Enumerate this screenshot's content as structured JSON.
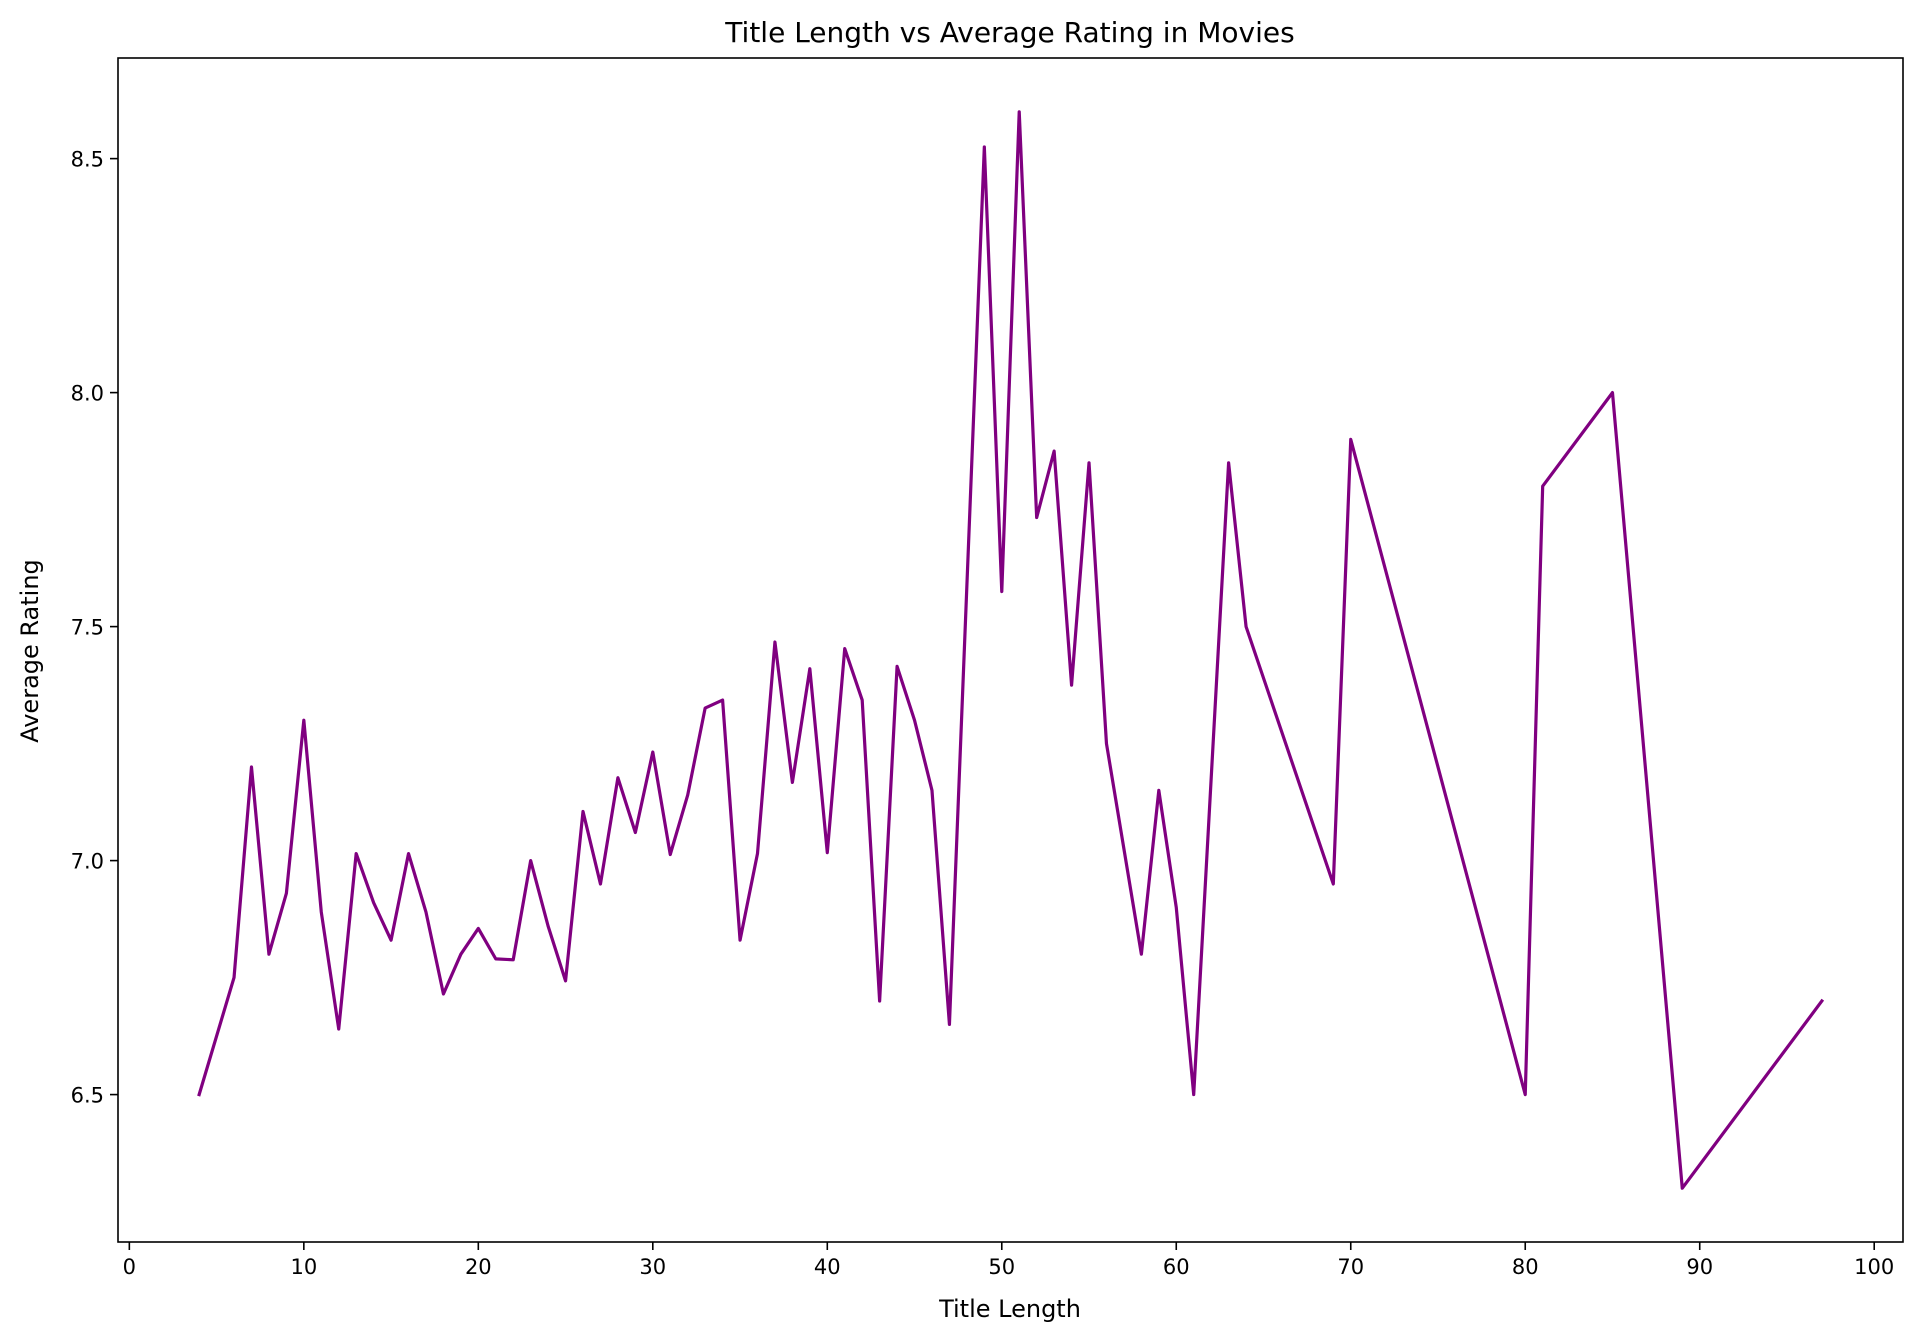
{
  "chart_data": {
    "type": "line",
    "title": "Title Length vs Average Rating in Movies",
    "xlabel": "Title Length",
    "ylabel": "Average Rating",
    "xlim": [
      -0.65,
      101.65
    ],
    "ylim": [
      6.185,
      8.715
    ],
    "xticks": [
      0,
      10,
      20,
      30,
      40,
      50,
      60,
      70,
      80,
      90,
      100
    ],
    "yticks": [
      6.5,
      7.0,
      7.5,
      8.0,
      8.5
    ],
    "ytick_labels": [
      "6.5",
      "7.0",
      "7.5",
      "8.0",
      "8.5"
    ],
    "grid": false,
    "series": [
      {
        "color": "#800080",
        "x": [
          4,
          6,
          7,
          8,
          9,
          10,
          11,
          12,
          13,
          14,
          15,
          16,
          17,
          18,
          19,
          20,
          21,
          22,
          23,
          24,
          25,
          26,
          27,
          28,
          29,
          30,
          31,
          32,
          33,
          34,
          35,
          36,
          37,
          38,
          39,
          40,
          41,
          42,
          43,
          44,
          45,
          46,
          47,
          49,
          50,
          51,
          52,
          53,
          54,
          55,
          56,
          58,
          59,
          60,
          61,
          63,
          64,
          69,
          70,
          80,
          81,
          85,
          89,
          97
        ],
        "y": [
          6.5,
          6.75,
          7.2,
          6.8,
          6.93,
          7.3,
          6.89,
          6.64,
          7.015,
          6.91,
          6.83,
          7.015,
          6.89,
          6.715,
          6.8,
          6.855,
          6.79,
          6.788,
          7.0,
          6.86,
          6.743,
          7.105,
          6.95,
          7.177,
          7.06,
          7.232,
          7.013,
          7.14,
          7.326,
          7.343,
          6.83,
          7.015,
          7.467,
          7.167,
          7.41,
          7.017,
          7.453,
          7.343,
          6.7,
          7.415,
          7.3,
          7.15,
          6.65,
          8.525,
          7.575,
          8.6,
          7.733,
          7.875,
          7.375,
          7.85,
          7.25,
          6.8,
          7.15,
          6.9,
          6.5,
          7.85,
          7.5,
          6.95,
          7.9,
          6.5,
          7.8,
          8.0,
          6.3,
          6.7
        ]
      }
    ]
  }
}
